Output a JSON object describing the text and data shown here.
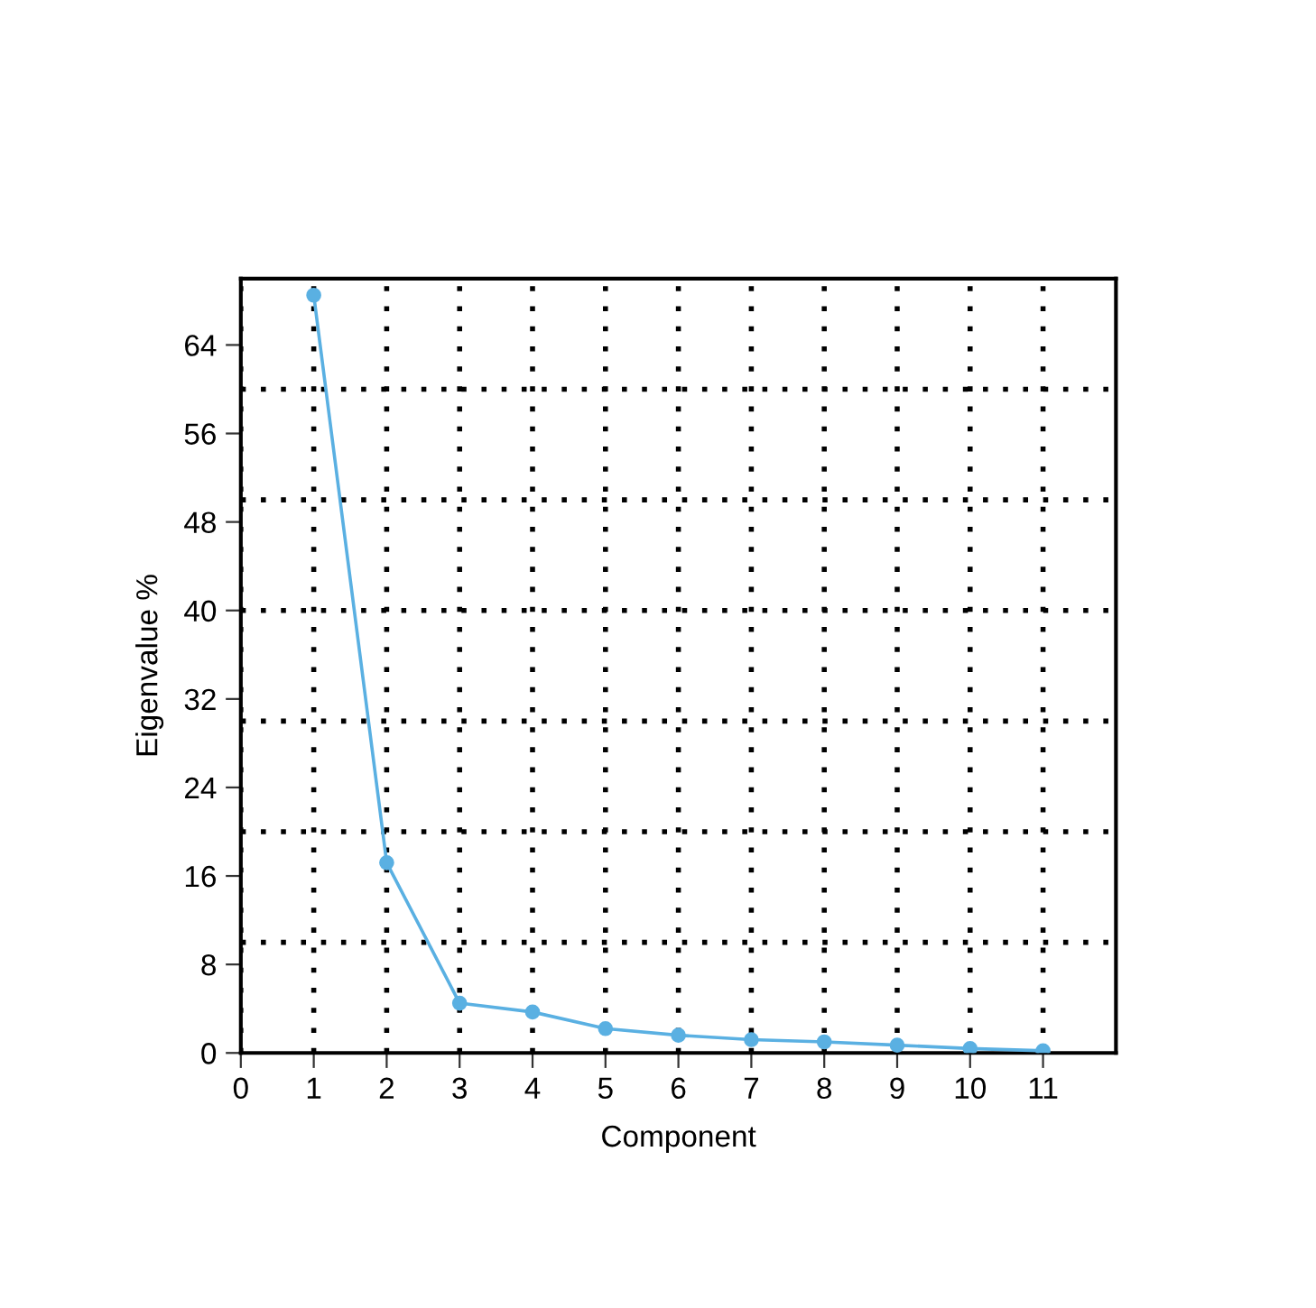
{
  "chart_data": {
    "type": "line",
    "xlabel": "Component",
    "ylabel": "Eigenvalue %",
    "x": [
      1,
      2,
      3,
      4,
      5,
      6,
      7,
      8,
      9,
      10,
      11
    ],
    "series": [
      {
        "color": "#5ab0e2",
        "values": [
          68.5,
          17.2,
          4.5,
          3.7,
          2.2,
          1.6,
          1.2,
          1.0,
          0.7,
          0.4,
          0.2
        ]
      }
    ],
    "xlim": [
      0,
      12
    ],
    "xticks": [
      0,
      1,
      2,
      3,
      4,
      5,
      6,
      7,
      8,
      9,
      10,
      11
    ],
    "ylim": [
      0,
      70
    ],
    "yticks": [
      0,
      8,
      16,
      24,
      32,
      40,
      48,
      56,
      64
    ],
    "grid": "x",
    "marker": "circle",
    "line_style": "solid",
    "ref_lines": [
      {
        "axis": "y",
        "value": 10,
        "color": "#000000",
        "line_style": "dotted"
      },
      {
        "axis": "y",
        "value": 20,
        "color": "#000000",
        "line_style": "dotted"
      },
      {
        "axis": "y",
        "value": 30,
        "color": "#000000",
        "line_style": "dotted"
      },
      {
        "axis": "y",
        "value": 40,
        "color": "#000000",
        "line_style": "dotted"
      },
      {
        "axis": "y",
        "value": 50,
        "color": "#000000",
        "line_style": "dotted"
      },
      {
        "axis": "y",
        "value": 60,
        "color": "#000000",
        "line_style": "dotted"
      }
    ]
  }
}
